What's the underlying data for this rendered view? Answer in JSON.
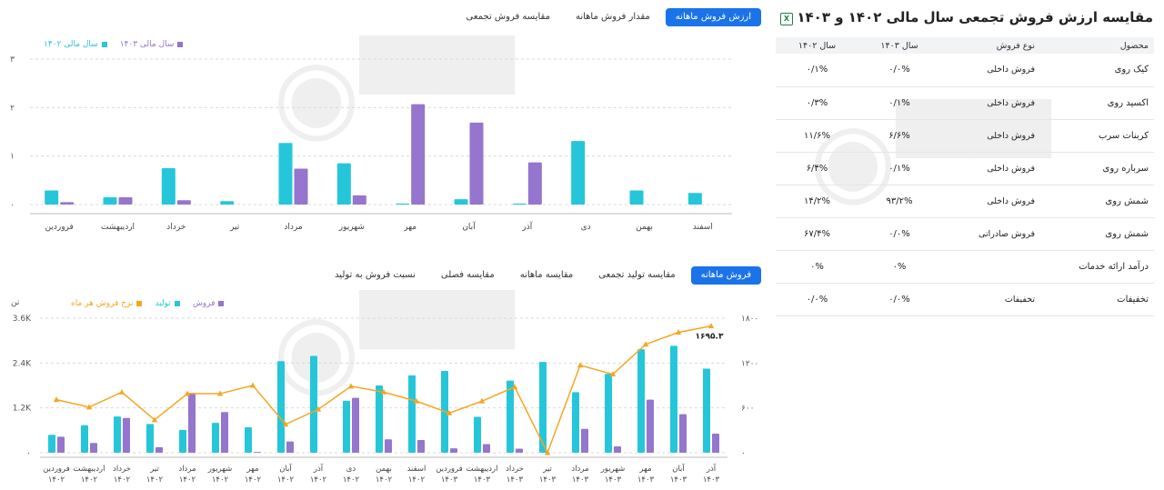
{
  "top_chart_tabs": [
    "ارزش فروش ماهانه",
    "مقدار فروش ماهانه",
    "مقایسه فروش تجمعی"
  ],
  "top_chart_active_tab": 0,
  "top_legend": [
    {
      "label": "سال مالی ۱۴۰۳",
      "color": "#9575cd"
    },
    {
      "label": "سال مالی ۱۴۰۲",
      "color": "#26c6da"
    }
  ],
  "bottom_chart_tabs": [
    "فروش ماهانه",
    "مقایسه تولید تجمعی",
    "مقایسه ماهانه",
    "مقایسه فصلی",
    "نسبت فروش به تولید"
  ],
  "bottom_chart_active_tab": 0,
  "bottom_legend": [
    {
      "label": "فروش",
      "color": "#9575cd"
    },
    {
      "label": "تولید",
      "color": "#26c6da"
    },
    {
      "label": "نرخ فروش هر ماه",
      "color": "#f5a623"
    }
  ],
  "bottom_left_unit": "تن",
  "panel": {
    "title": "مقایسه ارزش فروش تجمعی سال مالی ۱۴۰۲ و ۱۴۰۳",
    "excel_icon": "excel-icon",
    "columns": [
      "محصول",
      "نوع فروش",
      "سال ۱۴۰۳",
      "سال ۱۴۰۲"
    ],
    "rows": [
      {
        "product": "کیک روی",
        "type": "فروش داخلی",
        "y1403": "۰/۰%",
        "y1402": "۰/۱%"
      },
      {
        "product": "اکسید روی",
        "type": "فروش داخلی",
        "y1403": "۰/۱%",
        "y1402": "۰/۳%"
      },
      {
        "product": "کربنات سرب",
        "type": "فروش داخلی",
        "y1403": "۶/۶%",
        "y1402": "۱۱/۶%"
      },
      {
        "product": "سرباره روی",
        "type": "فروش داخلی",
        "y1403": "۰/۱%",
        "y1402": "۶/۴%"
      },
      {
        "product": "شمش روی",
        "type": "فروش داخلی",
        "y1403": "۹۳/۲%",
        "y1402": "۱۴/۲%"
      },
      {
        "product": "شمش روی",
        "type": "فروش صادراتی",
        "y1403": "۰/۰%",
        "y1402": "۶۷/۴%"
      },
      {
        "product": "درآمد ارائه خدمات",
        "type": "",
        "y1403": "۰%",
        "y1402": "۰%"
      },
      {
        "product": "تخفیفات",
        "type": "تخفیفات",
        "y1403": "۰/۰%",
        "y1402": "۰/۰%"
      }
    ]
  },
  "chart_data": [
    {
      "type": "bar",
      "categories": [
        "فروردین",
        "اردیبهشت",
        "خرداد",
        "تیر",
        "مرداد",
        "شهریور",
        "مهر",
        "آبان",
        "آذر",
        "دی",
        "بهمن",
        "اسفند"
      ],
      "series": [
        {
          "name": "سال مالی ۱۴۰۲",
          "color": "#26c6da",
          "values": [
            0.29,
            0.15,
            0.75,
            0.07,
            1.27,
            0.85,
            0.02,
            0.11,
            0.02,
            1.31,
            0.29,
            0.24
          ]
        },
        {
          "name": "سال مالی ۱۴۰۳",
          "color": "#9575cd",
          "values": [
            0.05,
            0.15,
            0.09,
            0,
            0.74,
            0.19,
            2.07,
            1.69,
            0.87,
            0,
            0,
            0
          ]
        }
      ],
      "yticks": [
        "۰",
        "۱",
        "۲",
        "۳"
      ],
      "ylim": [
        0,
        3
      ]
    },
    {
      "type": "bar+line",
      "categories": [
        [
          "فروردین",
          "۱۴۰۲"
        ],
        [
          "اردیبهشت",
          "۱۴۰۲"
        ],
        [
          "خرداد",
          "۱۴۰۲"
        ],
        [
          "تیر",
          "۱۴۰۲"
        ],
        [
          "مرداد",
          "۱۴۰۲"
        ],
        [
          "شهریور",
          "۱۴۰۲"
        ],
        [
          "مهر",
          "۱۴۰۲"
        ],
        [
          "آبان",
          "۱۴۰۲"
        ],
        [
          "آذر",
          "۱۴۰۲"
        ],
        [
          "دی",
          "۱۴۰۲"
        ],
        [
          "بهمن",
          "۱۴۰۲"
        ],
        [
          "اسفند",
          "۱۴۰۲"
        ],
        [
          "فروردین",
          "۱۴۰۳"
        ],
        [
          "اردیبهشت",
          "۱۴۰۳"
        ],
        [
          "خرداد",
          "۱۴۰۳"
        ],
        [
          "تیر",
          "۱۴۰۳"
        ],
        [
          "مرداد",
          "۱۴۰۳"
        ],
        [
          "شهریور",
          "۱۴۰۳"
        ],
        [
          "مهر",
          "۱۴۰۳"
        ],
        [
          "آبان",
          "۱۴۰۳"
        ],
        [
          "آذر",
          "۱۴۰۳"
        ]
      ],
      "series": [
        {
          "name": "تولید",
          "color": "#26c6da",
          "axis": "left",
          "values": [
            480,
            740,
            970,
            770,
            610,
            800,
            680,
            2450,
            2590,
            1390,
            1800,
            2070,
            2190,
            960,
            1930,
            2430,
            1620,
            2110,
            2770,
            2860,
            2250
          ]
        },
        {
          "name": "فروش",
          "color": "#9575cd",
          "axis": "left",
          "values": [
            430,
            260,
            930,
            150,
            1600,
            1090,
            20,
            300,
            0,
            1470,
            360,
            340,
            120,
            230,
            110,
            0,
            640,
            170,
            1420,
            1030,
            510
          ]
        },
        {
          "name": "نرخ فروش هر ماه",
          "color": "#f5a623",
          "axis": "right",
          "type": "line",
          "values": [
            710,
            610,
            810,
            440,
            790,
            790,
            900,
            380,
            580,
            890,
            810,
            690,
            530,
            690,
            880,
            0,
            1170,
            1050,
            1450,
            1610,
            1695.3
          ]
        }
      ],
      "last_point_label": "۱۶۹۵.۳",
      "yticks_left": [
        "۰",
        "1.2K",
        "2.4K",
        "3.6K"
      ],
      "ylim_left": [
        0,
        3600
      ],
      "yticks_right": [
        "۰",
        "۶۰۰",
        "۱۲۰۰",
        "۱۸۰۰"
      ],
      "ylim_right": [
        0,
        1800
      ]
    }
  ]
}
